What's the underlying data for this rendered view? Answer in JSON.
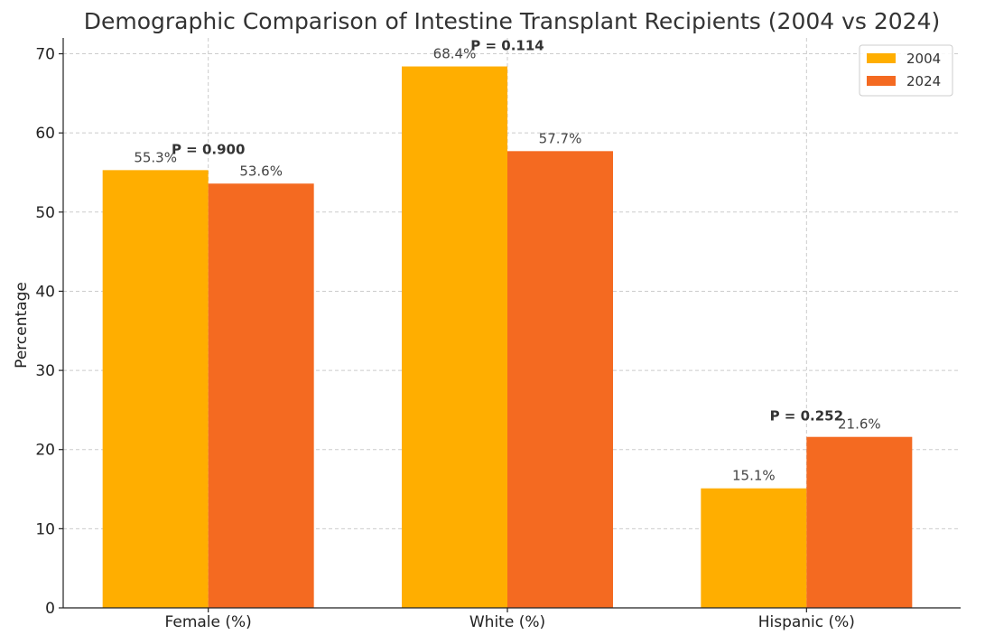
{
  "chart_data": {
    "type": "bar",
    "title": "Demographic Comparison of Intestine Transplant Recipients (2004 vs 2024)",
    "xlabel": "",
    "ylabel": "Percentage",
    "ylim": [
      0,
      72
    ],
    "yticks": [
      "0",
      "10",
      "20",
      "30",
      "40",
      "50",
      "60",
      "70"
    ],
    "grid": true,
    "legend_position": "top-right",
    "categories": [
      "Female (%)",
      "White (%)",
      "Hispanic (%)"
    ],
    "series": [
      {
        "name": "2004",
        "color": "#FFAE00",
        "values": [
          55.3,
          68.4,
          15.1
        ],
        "labels": [
          "55.3%",
          "68.4%",
          "15.1%"
        ]
      },
      {
        "name": "2024",
        "color": "#F46A21",
        "values": [
          53.6,
          57.7,
          21.6
        ],
        "labels": [
          "53.6%",
          "57.7%",
          "21.6%"
        ]
      }
    ],
    "annotations": [
      "P = 0.900",
      "P = 0.114",
      "P = 0.252"
    ]
  }
}
